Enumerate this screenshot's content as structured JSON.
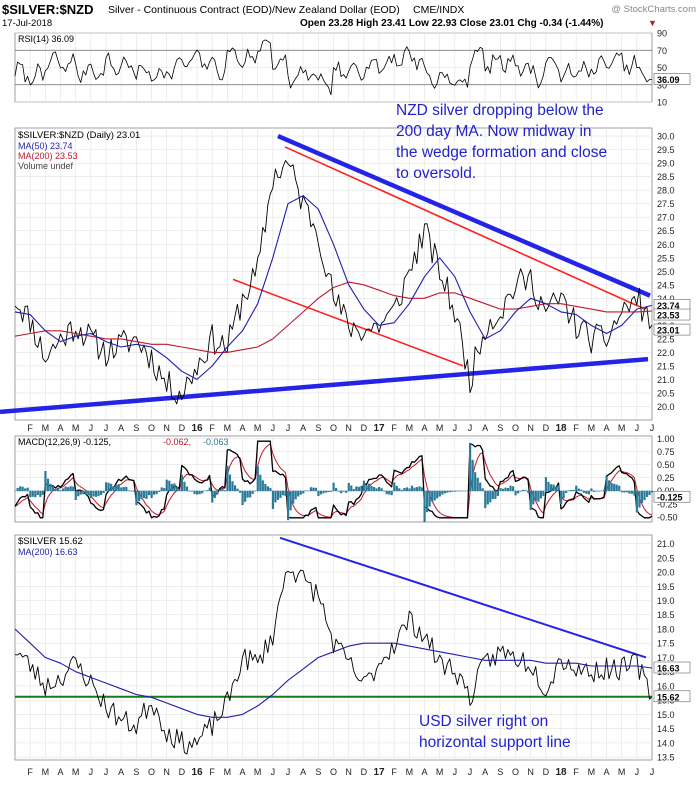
{
  "header": {
    "symbol": "$SILVER:$NZD",
    "description": "Silver - Continuous Contract (EOD)/New Zealand Dollar (EOD)",
    "exchange": "CME/INDX",
    "watermark": "@ StockCharts.com",
    "date": "17-Jul-2018",
    "ohlc": "Open 23.28  High 23.41  Low 22.93  Close 23.01  Chg -0.34 (-1.44%)",
    "change_arrow": "▼"
  },
  "colors": {
    "price": "#000000",
    "ma50": "#1f1fb0",
    "ma200": "#c0182c",
    "trendline_blue": "#2424e6",
    "trendline_red": "#ff2020",
    "support_green": "#1a7a1a",
    "annotation_text": "#2222cc",
    "macd_hist": "#2b7a99",
    "grid": "#e2e2e2"
  },
  "annotations": {
    "nzd_note": [
      "NZD silver dropping below the",
      "200 day MA. Now midway in",
      "the wedge formation and close",
      "to oversold."
    ],
    "usd_note": [
      "USD silver right on",
      "horizontal support line"
    ]
  },
  "chart_data": [
    {
      "type": "line",
      "panel": "RSI",
      "legend": "RSI(14) 36.09",
      "y_ticks": [
        "90",
        "70",
        "50",
        "30",
        "10"
      ],
      "ylim": [
        10,
        90
      ],
      "last_value_label": "36.09",
      "last_value": 36.09,
      "reference_lines": [
        70,
        30
      ]
    },
    {
      "type": "line",
      "panel": "price",
      "legend": [
        "$SILVER:$NZD (Daily) 23.01",
        "MA(50) 23.74",
        "MA(200) 23.53",
        "Volume undef"
      ],
      "y_ticks": [
        "30.0",
        "29.5",
        "29.0",
        "28.5",
        "28.0",
        "27.5",
        "27.0",
        "26.5",
        "26.0",
        "25.5",
        "25.0",
        "24.5",
        "24.0",
        "23.5",
        "23.0",
        "22.5",
        "22.0",
        "21.5",
        "21.0",
        "20.5",
        "20.0"
      ],
      "ylim": [
        19.5,
        30.3
      ],
      "x_ticks": [
        "F",
        "M",
        "A",
        "M",
        "J",
        "J",
        "A",
        "S",
        "O",
        "N",
        "D",
        "16",
        "F",
        "M",
        "A",
        "M",
        "J",
        "J",
        "A",
        "S",
        "O",
        "N",
        "D",
        "17",
        "F",
        "M",
        "A",
        "M",
        "J",
        "J",
        "A",
        "S",
        "O",
        "N",
        "D",
        "18",
        "F",
        "M",
        "A",
        "M",
        "J",
        "J"
      ],
      "last_value_labels": [
        "23.74",
        "23.53",
        "23.01"
      ],
      "series": [
        {
          "name": "$SILVER:$NZD (Daily)",
          "x": [
            "Jan-2015",
            "Feb-2015",
            "Mar-2015",
            "Apr-2015",
            "May-2015",
            "Jun-2015",
            "Jul-2015",
            "Aug-2015",
            "Sep-2015",
            "Oct-2015",
            "Nov-2015",
            "Dec-2015",
            "Jan-2016",
            "Feb-2016",
            "Mar-2016",
            "Apr-2016",
            "May-2016",
            "Jun-2016",
            "Jul-2016",
            "Aug-2016",
            "Sep-2016",
            "Oct-2016",
            "Nov-2016",
            "Dec-2016",
            "Jan-2017",
            "Feb-2017",
            "Mar-2017",
            "Apr-2017",
            "May-2017",
            "Jun-2017",
            "Jul-2017",
            "Aug-2017",
            "Sep-2017",
            "Oct-2017",
            "Nov-2017",
            "Dec-2017",
            "Jan-2018",
            "Feb-2018",
            "Mar-2018",
            "Apr-2018",
            "May-2018",
            "Jun-2018",
            "Jul-2018"
          ],
          "values": [
            24.0,
            23.2,
            21.8,
            22.5,
            23.0,
            22.5,
            22.0,
            22.3,
            22.5,
            21.8,
            20.8,
            20.5,
            21.5,
            22.5,
            22.2,
            24.0,
            25.0,
            28.5,
            29.0,
            27.5,
            26.5,
            24.0,
            23.0,
            22.8,
            23.0,
            23.5,
            25.0,
            26.5,
            25.0,
            23.5,
            21.0,
            23.0,
            23.5,
            24.5,
            24.7,
            23.5,
            24.0,
            23.0,
            22.5,
            22.5,
            23.5,
            24.0,
            23.01
          ]
        },
        {
          "name": "MA(50)",
          "values": [
            23.5,
            23.4,
            22.8,
            22.4,
            22.6,
            22.7,
            22.4,
            22.2,
            22.3,
            22.2,
            21.8,
            21.3,
            21.0,
            21.5,
            22.2,
            22.8,
            23.8,
            25.5,
            27.5,
            27.8,
            27.3,
            26.0,
            24.5,
            23.6,
            23.0,
            23.1,
            23.8,
            24.8,
            25.5,
            24.8,
            23.5,
            22.5,
            22.8,
            23.5,
            24.0,
            23.8,
            23.5,
            23.4,
            23.0,
            22.7,
            23.0,
            23.6,
            23.74
          ]
        },
        {
          "name": "MA(200)",
          "values": [
            22.6,
            22.7,
            22.8,
            22.8,
            22.7,
            22.6,
            22.5,
            22.5,
            22.4,
            22.3,
            22.3,
            22.2,
            22.1,
            22.0,
            22.0,
            22.1,
            22.2,
            22.5,
            23.0,
            23.5,
            24.0,
            24.4,
            24.6,
            24.5,
            24.3,
            24.1,
            24.0,
            24.0,
            24.2,
            24.2,
            24.0,
            23.8,
            23.6,
            23.6,
            23.7,
            23.8,
            23.8,
            23.7,
            23.6,
            23.5,
            23.5,
            23.5,
            23.53
          ]
        }
      ]
    },
    {
      "type": "line",
      "panel": "MACD",
      "legend": [
        "MACD(12,26,9) -0.125,",
        "-0.062,",
        "-0.063"
      ],
      "y_ticks": [
        "1.00",
        "0.75",
        "0.50",
        "0.25",
        "0.00",
        "-0.25",
        "-0.50"
      ],
      "ylim": [
        -0.6,
        1.05
      ],
      "last_value_label": "-0.125"
    },
    {
      "type": "line",
      "panel": "USD silver",
      "legend": [
        "$SILVER 15.62",
        "MA(200) 16.63"
      ],
      "y_ticks": [
        "21.0",
        "20.5",
        "20.0",
        "19.5",
        "19.0",
        "18.5",
        "18.0",
        "17.5",
        "17.0",
        "16.5",
        "16.0",
        "15.5",
        "15.0",
        "14.5",
        "14.0",
        "13.5"
      ],
      "ylim": [
        13.4,
        21.3
      ],
      "last_value_labels": [
        "16.63",
        "15.62"
      ],
      "support_level": 15.62,
      "x_ticks": [
        "F",
        "M",
        "A",
        "M",
        "J",
        "J",
        "A",
        "S",
        "O",
        "N",
        "D",
        "16",
        "F",
        "M",
        "A",
        "M",
        "J",
        "J",
        "A",
        "S",
        "O",
        "N",
        "D",
        "17",
        "F",
        "M",
        "A",
        "M",
        "J",
        "J",
        "A",
        "S",
        "O",
        "N",
        "D",
        "18",
        "F",
        "M",
        "A",
        "M",
        "J",
        "J"
      ],
      "series": [
        {
          "name": "$SILVER",
          "x": [
            "Jan-2015",
            "Feb-2015",
            "Mar-2015",
            "Apr-2015",
            "May-2015",
            "Jun-2015",
            "Jul-2015",
            "Aug-2015",
            "Sep-2015",
            "Oct-2015",
            "Nov-2015",
            "Dec-2015",
            "Jan-2016",
            "Feb-2016",
            "Mar-2016",
            "Apr-2016",
            "May-2016",
            "Jun-2016",
            "Jul-2016",
            "Aug-2016",
            "Sep-2016",
            "Oct-2016",
            "Nov-2016",
            "Dec-2016",
            "Jan-2017",
            "Feb-2017",
            "Mar-2017",
            "Apr-2017",
            "May-2017",
            "Jun-2017",
            "Jul-2017",
            "Aug-2017",
            "Sep-2017",
            "Oct-2017",
            "Nov-2017",
            "Dec-2017",
            "Jan-2018",
            "Feb-2018",
            "Mar-2018",
            "Apr-2018",
            "May-2018",
            "Jun-2018",
            "Jul-2018"
          ],
          "values": [
            17.3,
            16.7,
            16.0,
            16.3,
            16.8,
            16.1,
            15.3,
            14.8,
            14.6,
            15.5,
            14.4,
            14.0,
            14.0,
            14.6,
            15.4,
            17.0,
            16.8,
            17.8,
            20.3,
            19.7,
            19.2,
            17.5,
            16.8,
            16.0,
            16.8,
            17.5,
            18.3,
            17.8,
            16.8,
            16.6,
            15.6,
            16.8,
            17.2,
            17.0,
            16.8,
            15.9,
            17.0,
            16.6,
            16.5,
            16.6,
            16.6,
            16.8,
            15.62
          ]
        },
        {
          "name": "MA(200)",
          "values": [
            18.0,
            17.5,
            17.0,
            16.8,
            16.5,
            16.3,
            16.1,
            15.9,
            15.7,
            15.6,
            15.4,
            15.2,
            15.0,
            14.9,
            14.9,
            15.0,
            15.3,
            15.7,
            16.2,
            16.6,
            17.0,
            17.2,
            17.4,
            17.5,
            17.5,
            17.5,
            17.4,
            17.3,
            17.2,
            17.1,
            17.0,
            16.9,
            16.9,
            16.9,
            16.9,
            16.8,
            16.8,
            16.8,
            16.7,
            16.7,
            16.7,
            16.7,
            16.63
          ]
        }
      ]
    }
  ]
}
